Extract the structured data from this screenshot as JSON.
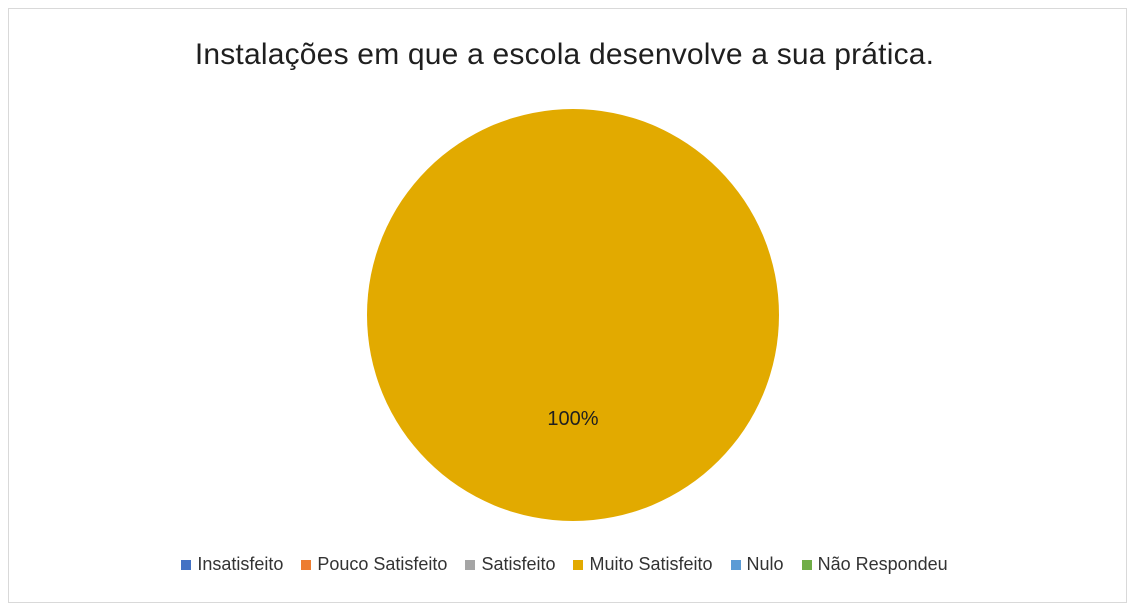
{
  "chart_data": {
    "type": "pie",
    "title": "Instalações em que a escola desenvolve a sua prática.",
    "categories": [
      "Insatisfeito",
      "Pouco Satisfeito",
      "Satisfeito",
      "Muito Satisfeito",
      "Nulo",
      "Não Respondeu"
    ],
    "values": [
      0,
      0,
      0,
      100,
      0,
      0
    ],
    "data_labels": [
      "",
      "",
      "",
      "100%",
      "",
      ""
    ],
    "colors": [
      "#4472c4",
      "#ed7d31",
      "#a5a5a5",
      "#e2aa00",
      "#5b9bd5",
      "#70ad47"
    ],
    "legend_position": "bottom"
  }
}
